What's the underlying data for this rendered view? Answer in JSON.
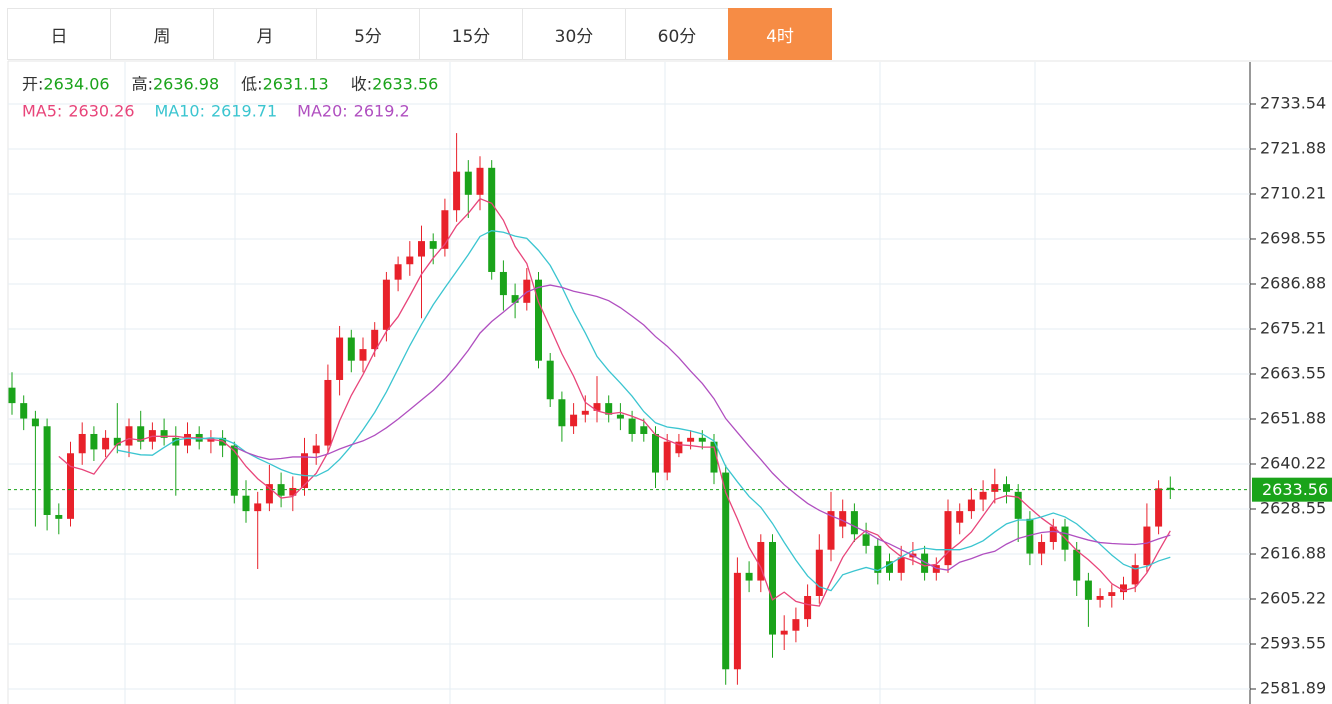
{
  "tabs": [
    "日",
    "周",
    "月",
    "5分",
    "15分",
    "30分",
    "60分",
    "4时"
  ],
  "active_tab": 7,
  "chart_data": {
    "type": "candlestick",
    "info": [
      {
        "label": "开:",
        "value": 2634.06
      },
      {
        "label": "高:",
        "value": 2636.98
      },
      {
        "label": "低:",
        "value": 2631.13
      },
      {
        "label": "收:",
        "value": 2633.56
      }
    ],
    "up_color": "#e8212a",
    "down_color": "#1aa31a",
    "ma": [
      {
        "label": "MA5:",
        "value": 2630.26,
        "period": 5,
        "color": "#e8457a"
      },
      {
        "label": "MA10:",
        "value": 2619.71,
        "period": 10,
        "color": "#3bc5d0"
      },
      {
        "label": "MA20:",
        "value": 2619.2,
        "period": 20,
        "color": "#b04fc0"
      }
    ],
    "open": [
      2660,
      2656,
      2652,
      2650,
      2627,
      2626,
      2643,
      2648,
      2644,
      2647,
      2645,
      2650,
      2646,
      2649,
      2647,
      2645,
      2648,
      2646,
      2647,
      2645,
      2632,
      2628,
      2630,
      2635,
      2632,
      2634,
      2643,
      2645,
      2662,
      2673,
      2667,
      2670,
      2675,
      2688,
      2692,
      2694,
      2698,
      2696,
      2706,
      2716,
      2710,
      2717,
      2690,
      2684,
      2682,
      2688,
      2667,
      2657,
      2650,
      2653,
      2654,
      2656,
      2653,
      2652,
      2650,
      2648,
      2638,
      2643,
      2646,
      2647,
      2646,
      2638,
      2587,
      2612,
      2610,
      2620,
      2596,
      2597,
      2600,
      2606,
      2618,
      2624,
      2628,
      2622,
      2619,
      2615,
      2612,
      2616,
      2617,
      2612,
      2614,
      2625,
      2628,
      2631,
      2633,
      2635,
      2633,
      2626,
      2617,
      2620,
      2624,
      2618,
      2610,
      2605,
      2606,
      2607,
      2609,
      2614,
      2624,
      2634.06
    ],
    "high": [
      2664,
      2658,
      2654,
      2652,
      2630,
      2646,
      2651,
      2650,
      2649,
      2656,
      2652,
      2654,
      2651,
      2652,
      2650,
      2651,
      2650,
      2649,
      2649,
      2646,
      2636,
      2633,
      2640,
      2638,
      2637,
      2647,
      2648,
      2666,
      2676,
      2675,
      2673,
      2677,
      2690,
      2694,
      2698,
      2702,
      2700,
      2709,
      2726,
      2719,
      2720,
      2719,
      2693,
      2687,
      2691,
      2690,
      2669,
      2659,
      2656,
      2658,
      2663,
      2658,
      2656,
      2654,
      2652,
      2650,
      2648,
      2648,
      2649,
      2649,
      2648,
      2640,
      2616,
      2615,
      2622,
      2622,
      2601,
      2603,
      2609,
      2622,
      2633,
      2631,
      2630,
      2625,
      2621,
      2617,
      2619,
      2620,
      2619,
      2616,
      2631,
      2630,
      2634,
      2636,
      2639,
      2637,
      2635,
      2628,
      2622,
      2626,
      2626,
      2620,
      2612,
      2608,
      2609,
      2611,
      2617,
      2630,
      2636,
      2636.98
    ],
    "low": [
      2653,
      2649,
      2624,
      2623,
      2622,
      2624,
      2640,
      2641,
      2642,
      2643,
      2642,
      2644,
      2644,
      2645,
      2632,
      2643,
      2644,
      2643,
      2642,
      2630,
      2625,
      2613,
      2628,
      2629,
      2628,
      2632,
      2640,
      2643,
      2658,
      2664,
      2664,
      2668,
      2672,
      2685,
      2689,
      2678,
      2692,
      2694,
      2703,
      2704,
      2706,
      2688,
      2680,
      2678,
      2680,
      2665,
      2655,
      2646,
      2648,
      2651,
      2651,
      2651,
      2649,
      2646,
      2646,
      2634,
      2636,
      2642,
      2644,
      2644,
      2635,
      2583,
      2583,
      2607,
      2607,
      2590,
      2592,
      2594,
      2598,
      2604,
      2615,
      2621,
      2620,
      2617,
      2609,
      2610,
      2610,
      2614,
      2610,
      2610,
      2612,
      2622,
      2626,
      2628,
      2630,
      2630,
      2620,
      2614,
      2614,
      2618,
      2615,
      2606,
      2598,
      2603,
      2603,
      2605,
      2607,
      2612,
      2622,
      2631.13
    ],
    "close": [
      2656,
      2652,
      2650,
      2627,
      2626,
      2643,
      2648,
      2644,
      2647,
      2645,
      2650,
      2646,
      2649,
      2647,
      2645,
      2648,
      2646,
      2647,
      2645,
      2632,
      2628,
      2630,
      2635,
      2632,
      2634,
      2643,
      2645,
      2662,
      2673,
      2667,
      2670,
      2675,
      2688,
      2692,
      2694,
      2698,
      2696,
      2706,
      2716,
      2710,
      2717,
      2690,
      2684,
      2682,
      2688,
      2667,
      2657,
      2650,
      2653,
      2654,
      2656,
      2653,
      2652,
      2648,
      2648,
      2638,
      2646,
      2646,
      2647,
      2646,
      2638,
      2587,
      2612,
      2610,
      2620,
      2596,
      2597,
      2600,
      2606,
      2618,
      2628,
      2628,
      2622,
      2619,
      2612,
      2612,
      2616,
      2617,
      2612,
      2614,
      2628,
      2628,
      2631,
      2633,
      2635,
      2633,
      2626,
      2617,
      2620,
      2624,
      2618,
      2610,
      2605,
      2606,
      2607,
      2609,
      2614,
      2624,
      2633.9,
      2633.56
    ],
    "last": 2633.56,
    "ylim": [
      2578.0,
      2744.43
    ],
    "yticks": [
      2733.54,
      2721.88,
      2710.21,
      2698.55,
      2686.88,
      2675.21,
      2663.55,
      2651.88,
      2640.22,
      2628.55,
      2616.88,
      2605.22,
      2593.55,
      2581.89
    ],
    "grid": true
  }
}
